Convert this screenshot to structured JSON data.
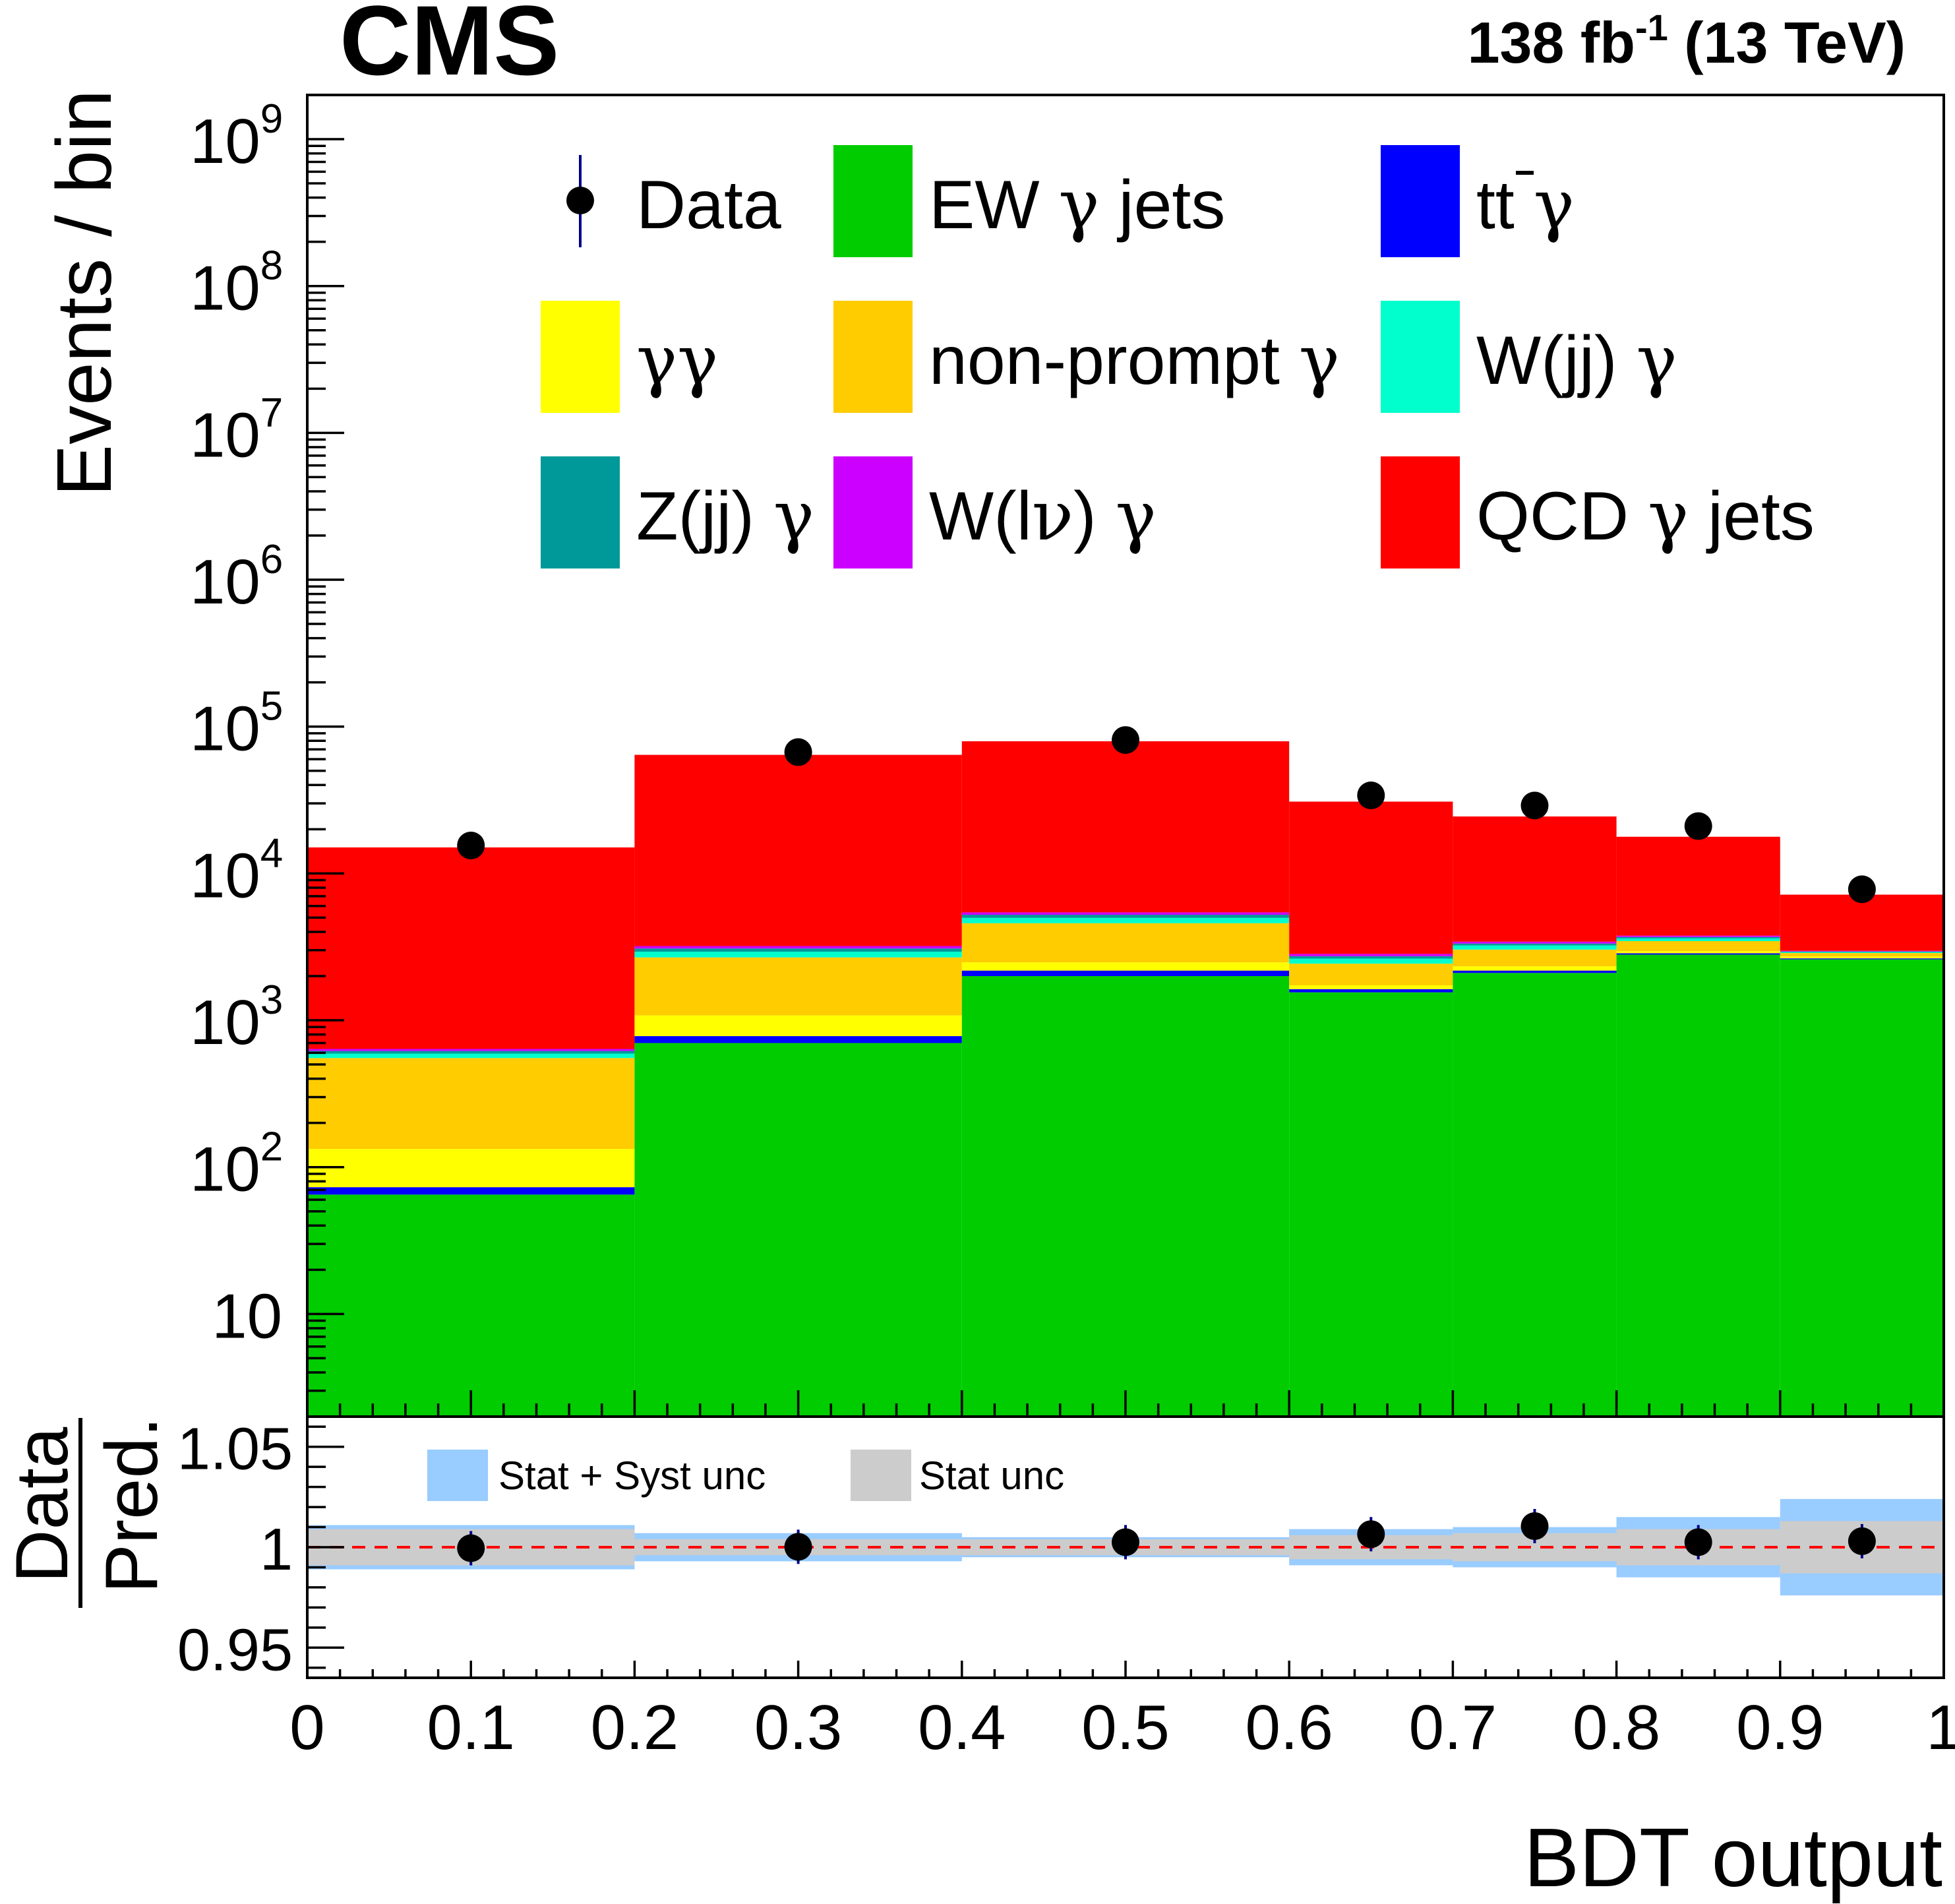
{
  "header": {
    "experiment": "CMS",
    "lumi_value": "138 fb",
    "lumi_exponent": "-1",
    "energy": " (13 TeV)"
  },
  "chart_data": [
    {
      "type": "bar",
      "stacked": true,
      "ylog": true,
      "ylabel": "Events / bin",
      "xlim": [
        0,
        1
      ],
      "ylim": [
        2,
        2000000000
      ],
      "bin_edges": [
        0,
        0.2,
        0.4,
        0.6,
        0.7,
        0.8,
        0.9,
        1.0
      ],
      "y_tick_labels": [
        {
          "value": 10,
          "base": "10",
          "exp": ""
        },
        {
          "value": 100,
          "base": "10",
          "exp": "2"
        },
        {
          "value": 1000,
          "base": "10",
          "exp": "3"
        },
        {
          "value": 10000,
          "base": "10",
          "exp": "4"
        },
        {
          "value": 100000,
          "base": "10",
          "exp": "5"
        },
        {
          "value": 1000000,
          "base": "10",
          "exp": "6"
        },
        {
          "value": 10000000,
          "base": "10",
          "exp": "7"
        },
        {
          "value": 100000000,
          "base": "10",
          "exp": "8"
        },
        {
          "value": 1000000000,
          "base": "10",
          "exp": "9"
        }
      ],
      "series": [
        {
          "name": "EW jets",
          "greek": "γ",
          "label_template": "EW {g} jets",
          "color": "#00cc00",
          "values": [
            65,
            700,
            2000,
            1550,
            2100,
            2800,
            2600
          ]
        },
        {
          "name": "tt",
          "greek": "γ",
          "label_template": "tt {g}",
          "color": "#0000ff",
          "values": [
            8,
            80,
            180,
            80,
            80,
            60,
            40
          ]
        },
        {
          "name": "γγ",
          "greek": "γγ",
          "label_template": "{g}",
          "color": "#ffff00",
          "values": [
            60,
            300,
            300,
            100,
            150,
            100,
            80
          ]
        },
        {
          "name": "non-prompt",
          "greek": "γ",
          "label_template": "non-prompt {g}",
          "color": "#ffcc00",
          "values": [
            420,
            1600,
            2100,
            700,
            700,
            500,
            150
          ]
        },
        {
          "name": "W(jj)",
          "greek": "γ",
          "label_template": "W(jj) {g}",
          "color": "#00ffcc",
          "values": [
            40,
            250,
            400,
            200,
            200,
            150,
            40
          ]
        },
        {
          "name": "Z(jj)",
          "greek": "γ",
          "label_template": "Z(jj) {g}",
          "color": "#009999",
          "values": [
            25,
            150,
            250,
            100,
            100,
            80,
            30
          ]
        },
        {
          "name": "W(lν)",
          "greek": "γ",
          "label_template": "W(l{n}) {g}",
          "color": "#cc00ff",
          "values": [
            20,
            120,
            200,
            100,
            100,
            80,
            30
          ]
        },
        {
          "name": "QCD jets",
          "greek": "γ",
          "label_template": "QCD {g} jets",
          "color": "#ff0000",
          "values": [
            14400,
            61000,
            74000,
            28000,
            21000,
            14000,
            4200
          ]
        }
      ],
      "data": {
        "name": "Data",
        "x": [
          0.1,
          0.3,
          0.5,
          0.65,
          0.75,
          0.85,
          0.95
        ],
        "y": [
          15500,
          67000,
          81000,
          34000,
          29000,
          21000,
          7800
        ],
        "color": "#000000",
        "error_color": "#00008b"
      }
    },
    {
      "type": "line",
      "xlabel": "BDT output",
      "ylabel_numerator": "Data",
      "ylabel_denominator": "Pred.",
      "xlim": [
        0,
        1
      ],
      "ylim": [
        0.935,
        1.065
      ],
      "x_tick_labels": [
        "0",
        "0.1",
        "0.2",
        "0.3",
        "0.4",
        "0.5",
        "0.6",
        "0.7",
        "0.8",
        "0.9",
        "1"
      ],
      "y_tick_labels": [
        "0.95",
        "1",
        "1.05"
      ],
      "reference_line": 1.0,
      "bin_edges": [
        0,
        0.2,
        0.4,
        0.6,
        0.7,
        0.8,
        0.9,
        1.0
      ],
      "stat_syst_unc": {
        "label": "Stat + Syst unc",
        "color": "#99ccff",
        "half_widths": [
          0.011,
          0.007,
          0.005,
          0.009,
          0.01,
          0.015,
          0.024
        ]
      },
      "stat_unc": {
        "label": "Stat unc",
        "color": "#cccccc",
        "half_widths": [
          0.009,
          0.004,
          0.004,
          0.006,
          0.007,
          0.009,
          0.013
        ]
      },
      "points": {
        "x": [
          0.1,
          0.3,
          0.5,
          0.65,
          0.75,
          0.85,
          0.95
        ],
        "y": [
          0.9995,
          1.0002,
          1.0025,
          1.0065,
          1.0105,
          1.0025,
          1.003
        ]
      }
    }
  ]
}
